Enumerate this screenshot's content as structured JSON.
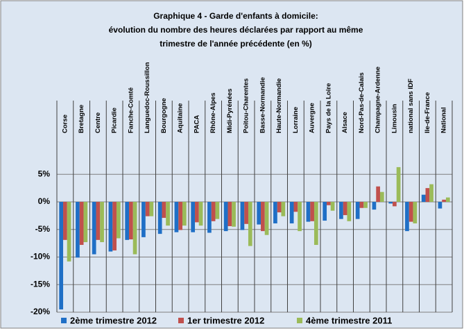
{
  "chart_data": {
    "type": "bar",
    "title": [
      "Graphique 4 - Garde d'enfants à domicile:",
      "évolution du nombre des heures déclarées par rapport au même",
      "trimestre de l'année précédente (en %)"
    ],
    "categories": [
      "Corse",
      "Bretagne",
      "Centre",
      "Picardie",
      "Fanche-Comté",
      "Languedoc-Roussillon",
      "Bourgogne",
      "Aquitaine",
      "PACA",
      "Rhône-Alpes",
      "Midi-Pyrénées",
      "Poitou-Charentes",
      "Basse-Normandie",
      "Haute-Normandie",
      "Lorraine",
      "Auvergne",
      "Pays de la Loire",
      "Alsace",
      "Nord-Pas-de-Calais",
      "Champagne-Ardenne",
      "Limousin",
      "national sans IDF",
      "Ile-de-France",
      "National"
    ],
    "series": [
      {
        "name": "2ème trimestre 2012",
        "color": "#1f6fc6",
        "values": [
          -19.5,
          -10.1,
          -9.5,
          -9.0,
          -6.9,
          -6.4,
          -5.8,
          -5.5,
          -5.5,
          -5.6,
          -5.3,
          -5.1,
          -4.1,
          -3.9,
          -3.9,
          -3.6,
          -3.4,
          -3.1,
          -3.1,
          -1.4,
          -0.3,
          -5.3,
          1.3,
          -1.2
        ]
      },
      {
        "name": "1er trimestre 2012",
        "color": "#c0504d",
        "values": [
          -6.9,
          -7.8,
          -6.9,
          -8.8,
          -6.8,
          -2.6,
          -2.9,
          -5.1,
          -3.7,
          -3.5,
          -4.4,
          -4.0,
          -5.3,
          -1.9,
          -1.8,
          -3.5,
          -0.6,
          -2.4,
          -1.1,
          2.8,
          -0.8,
          -3.6,
          2.5,
          0.4
        ]
      },
      {
        "name": "4ème trimestre 2011",
        "color": "#9bbb59",
        "values": [
          -10.8,
          -7.3,
          -7.3,
          -6.6,
          -9.5,
          -2.6,
          -4.3,
          -4.3,
          -4.3,
          -3.1,
          -4.5,
          -8.0,
          -6.0,
          -2.6,
          -5.3,
          -7.8,
          -1.6,
          -3.5,
          -1.1,
          1.8,
          6.3,
          -3.9,
          3.2,
          0.8
        ]
      }
    ],
    "ylim": [
      -20,
      10
    ],
    "yticks": [
      {
        "value": 5,
        "label": "5%"
      },
      {
        "value": 0,
        "label": "0%"
      },
      {
        "value": -5,
        "label": "-5%"
      },
      {
        "value": -10,
        "label": "-10%"
      },
      {
        "value": -15,
        "label": "-15%"
      },
      {
        "value": -20,
        "label": "-20%"
      }
    ],
    "grid": true,
    "legend": "bottom"
  }
}
